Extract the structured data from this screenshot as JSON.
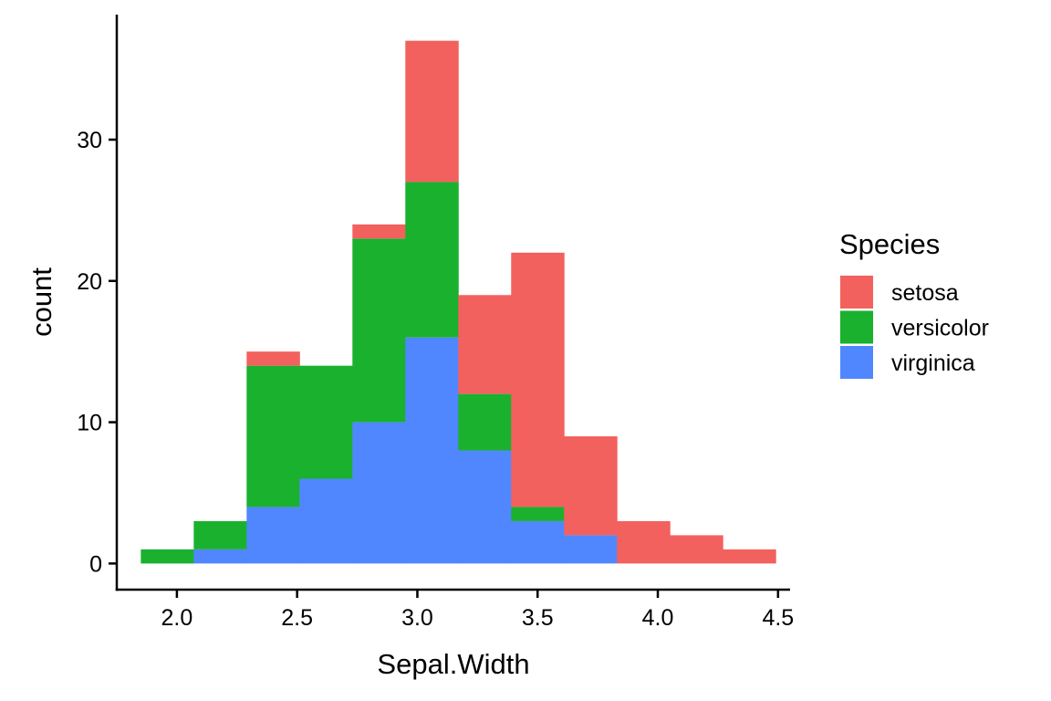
{
  "chart_data": {
    "type": "bar",
    "stacked": true,
    "histogram": true,
    "xlabel": "Sepal.Width",
    "ylabel": "count",
    "xlim": [
      1.75,
      4.55
    ],
    "ylim": [
      -1.85,
      38.85
    ],
    "xticks": [
      "2.0",
      "2.5",
      "3.0",
      "3.5",
      "4.0",
      "4.5"
    ],
    "yticks": [
      "0",
      "10",
      "20",
      "30"
    ],
    "bin_edges": [
      1.85,
      2.07,
      2.29,
      2.51,
      2.73,
      2.95,
      3.17,
      3.39,
      3.61,
      3.83,
      4.05,
      4.27,
      4.49
    ],
    "legend": {
      "title": "Species",
      "position": "right"
    },
    "grid": false,
    "series": [
      {
        "name": "virginica",
        "color": "#5087FF",
        "values": [
          0,
          1,
          4,
          6,
          10,
          16,
          8,
          3,
          2,
          0,
          0,
          0
        ]
      },
      {
        "name": "versicolor",
        "color": "#1AB12F",
        "values": [
          1,
          2,
          10,
          8,
          13,
          11,
          4,
          1,
          0,
          0,
          0,
          0
        ]
      },
      {
        "name": "setosa",
        "color": "#F2615E",
        "values": [
          0,
          0,
          1,
          0,
          1,
          10,
          7,
          18,
          7,
          3,
          2,
          1
        ]
      }
    ],
    "legend_order": [
      "setosa",
      "versicolor",
      "virginica"
    ]
  }
}
